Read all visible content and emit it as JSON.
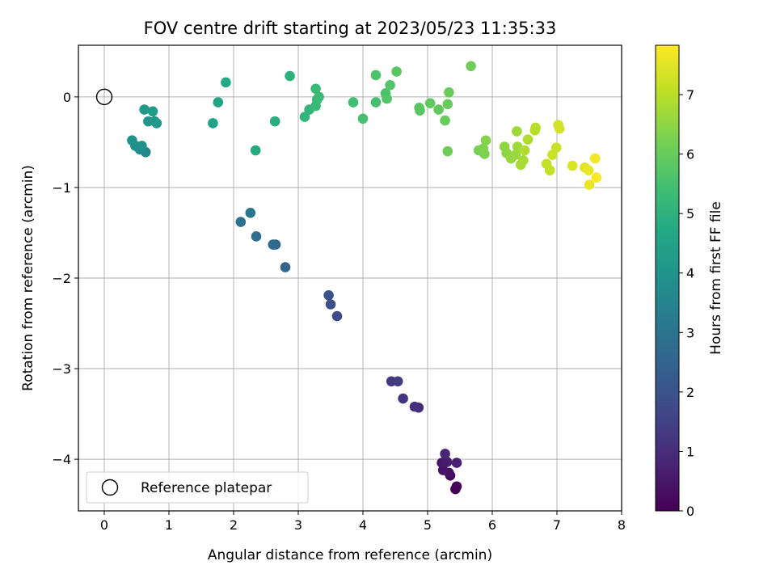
{
  "chart_data": {
    "type": "scatter",
    "title": "FOV centre drift starting at 2023/05/23 11:35:33",
    "xlabel": "Angular distance from reference (arcmin)",
    "ylabel": "Rotation from reference (arcmin)",
    "xlim": [
      -0.4,
      8.0
    ],
    "ylim": [
      -4.57,
      0.57
    ],
    "xticks": [
      0,
      1,
      2,
      3,
      4,
      5,
      6,
      7,
      8
    ],
    "yticks": [
      0,
      -1,
      -2,
      -3,
      -4
    ],
    "grid": true,
    "legend": {
      "placement": "lower-left",
      "entries": [
        "Reference platepar"
      ]
    },
    "colorbar": {
      "label": "Hours from first FF file",
      "min": 0,
      "max": 7.83,
      "ticks": [
        0,
        1,
        2,
        3,
        4,
        5,
        6,
        7
      ],
      "colormap": "viridis"
    },
    "reference_point": {
      "x": 0,
      "y": 0
    },
    "points": [
      {
        "x": 5.43,
        "y": -4.33,
        "h": 0.0
      },
      {
        "x": 5.45,
        "y": -4.3,
        "h": 0.1
      },
      {
        "x": 5.35,
        "y": -4.18,
        "h": 0.2
      },
      {
        "x": 5.33,
        "y": -4.15,
        "h": 0.3
      },
      {
        "x": 5.24,
        "y": -4.12,
        "h": 0.4
      },
      {
        "x": 5.22,
        "y": -4.04,
        "h": 0.5
      },
      {
        "x": 5.3,
        "y": -4.03,
        "h": 0.6
      },
      {
        "x": 5.45,
        "y": -4.04,
        "h": 0.7
      },
      {
        "x": 5.27,
        "y": -3.94,
        "h": 0.8
      },
      {
        "x": 4.86,
        "y": -3.43,
        "h": 1.0
      },
      {
        "x": 4.8,
        "y": -3.42,
        "h": 1.1
      },
      {
        "x": 4.62,
        "y": -3.33,
        "h": 1.2
      },
      {
        "x": 4.44,
        "y": -3.14,
        "h": 1.3
      },
      {
        "x": 4.54,
        "y": -3.14,
        "h": 1.4
      },
      {
        "x": 3.6,
        "y": -2.42,
        "h": 1.8
      },
      {
        "x": 3.5,
        "y": -2.29,
        "h": 1.9
      },
      {
        "x": 3.47,
        "y": -2.19,
        "h": 2.0
      },
      {
        "x": 2.8,
        "y": -1.88,
        "h": 2.5
      },
      {
        "x": 2.65,
        "y": -1.63,
        "h": 2.6
      },
      {
        "x": 2.61,
        "y": -1.63,
        "h": 2.7
      },
      {
        "x": 2.35,
        "y": -1.54,
        "h": 2.8
      },
      {
        "x": 2.11,
        "y": -1.38,
        "h": 2.9
      },
      {
        "x": 2.26,
        "y": -1.28,
        "h": 3.0
      },
      {
        "x": 0.64,
        "y": -0.61,
        "h": 3.6
      },
      {
        "x": 0.55,
        "y": -0.58,
        "h": 3.7
      },
      {
        "x": 0.48,
        "y": -0.54,
        "h": 3.8
      },
      {
        "x": 0.43,
        "y": -0.48,
        "h": 3.9
      },
      {
        "x": 0.58,
        "y": -0.54,
        "h": 3.9
      },
      {
        "x": 0.68,
        "y": -0.27,
        "h": 4.1
      },
      {
        "x": 0.78,
        "y": -0.27,
        "h": 4.1
      },
      {
        "x": 0.81,
        "y": -0.29,
        "h": 4.2
      },
      {
        "x": 0.62,
        "y": -0.14,
        "h": 4.2
      },
      {
        "x": 0.75,
        "y": -0.16,
        "h": 4.3
      },
      {
        "x": 1.68,
        "y": -0.29,
        "h": 4.5
      },
      {
        "x": 1.76,
        "y": -0.06,
        "h": 4.6
      },
      {
        "x": 1.88,
        "y": 0.16,
        "h": 4.7
      },
      {
        "x": 2.34,
        "y": -0.59,
        "h": 4.8
      },
      {
        "x": 2.64,
        "y": -0.27,
        "h": 4.9
      },
      {
        "x": 2.87,
        "y": 0.23,
        "h": 5.0
      },
      {
        "x": 3.1,
        "y": -0.22,
        "h": 5.1
      },
      {
        "x": 3.17,
        "y": -0.14,
        "h": 5.1
      },
      {
        "x": 3.27,
        "y": -0.1,
        "h": 5.2
      },
      {
        "x": 3.29,
        "y": -0.03,
        "h": 5.2
      },
      {
        "x": 3.32,
        "y": 0.0,
        "h": 5.3
      },
      {
        "x": 3.27,
        "y": 0.09,
        "h": 5.3
      },
      {
        "x": 3.85,
        "y": -0.06,
        "h": 5.4
      },
      {
        "x": 4.0,
        "y": -0.24,
        "h": 5.5
      },
      {
        "x": 4.2,
        "y": -0.06,
        "h": 5.5
      },
      {
        "x": 4.2,
        "y": 0.24,
        "h": 5.6
      },
      {
        "x": 4.35,
        "y": 0.04,
        "h": 5.6
      },
      {
        "x": 4.37,
        "y": -0.02,
        "h": 5.7
      },
      {
        "x": 4.42,
        "y": 0.13,
        "h": 5.7
      },
      {
        "x": 4.52,
        "y": 0.28,
        "h": 5.8
      },
      {
        "x": 4.87,
        "y": -0.12,
        "h": 5.8
      },
      {
        "x": 4.88,
        "y": -0.15,
        "h": 5.8
      },
      {
        "x": 5.04,
        "y": -0.07,
        "h": 5.9
      },
      {
        "x": 5.17,
        "y": -0.14,
        "h": 5.9
      },
      {
        "x": 5.27,
        "y": -0.26,
        "h": 6.0
      },
      {
        "x": 5.31,
        "y": -0.08,
        "h": 6.0
      },
      {
        "x": 5.33,
        "y": 0.05,
        "h": 6.0
      },
      {
        "x": 5.31,
        "y": -0.6,
        "h": 6.1
      },
      {
        "x": 5.67,
        "y": 0.34,
        "h": 6.1
      },
      {
        "x": 5.79,
        "y": -0.59,
        "h": 6.2
      },
      {
        "x": 5.86,
        "y": -0.57,
        "h": 6.3
      },
      {
        "x": 5.88,
        "y": -0.63,
        "h": 6.3
      },
      {
        "x": 5.9,
        "y": -0.48,
        "h": 6.4
      },
      {
        "x": 6.19,
        "y": -0.55,
        "h": 6.5
      },
      {
        "x": 6.22,
        "y": -0.62,
        "h": 6.5
      },
      {
        "x": 6.29,
        "y": -0.68,
        "h": 6.6
      },
      {
        "x": 6.36,
        "y": -0.64,
        "h": 6.6
      },
      {
        "x": 6.38,
        "y": -0.38,
        "h": 6.7
      },
      {
        "x": 6.39,
        "y": -0.55,
        "h": 6.7
      },
      {
        "x": 6.44,
        "y": -0.75,
        "h": 6.8
      },
      {
        "x": 6.48,
        "y": -0.7,
        "h": 6.8
      },
      {
        "x": 6.5,
        "y": -0.59,
        "h": 6.9
      },
      {
        "x": 6.55,
        "y": -0.47,
        "h": 6.9
      },
      {
        "x": 6.66,
        "y": -0.37,
        "h": 7.0
      },
      {
        "x": 6.67,
        "y": -0.34,
        "h": 7.0
      },
      {
        "x": 6.84,
        "y": -0.74,
        "h": 7.1
      },
      {
        "x": 6.89,
        "y": -0.81,
        "h": 7.1
      },
      {
        "x": 6.93,
        "y": -0.64,
        "h": 7.2
      },
      {
        "x": 6.99,
        "y": -0.56,
        "h": 7.2
      },
      {
        "x": 7.02,
        "y": -0.31,
        "h": 7.3
      },
      {
        "x": 7.04,
        "y": -0.35,
        "h": 7.3
      },
      {
        "x": 7.24,
        "y": -0.76,
        "h": 7.4
      },
      {
        "x": 7.43,
        "y": -0.78,
        "h": 7.5
      },
      {
        "x": 7.49,
        "y": -0.81,
        "h": 7.6
      },
      {
        "x": 7.5,
        "y": -0.97,
        "h": 7.6
      },
      {
        "x": 7.59,
        "y": -0.68,
        "h": 7.7
      },
      {
        "x": 7.61,
        "y": -0.89,
        "h": 7.8
      }
    ]
  }
}
